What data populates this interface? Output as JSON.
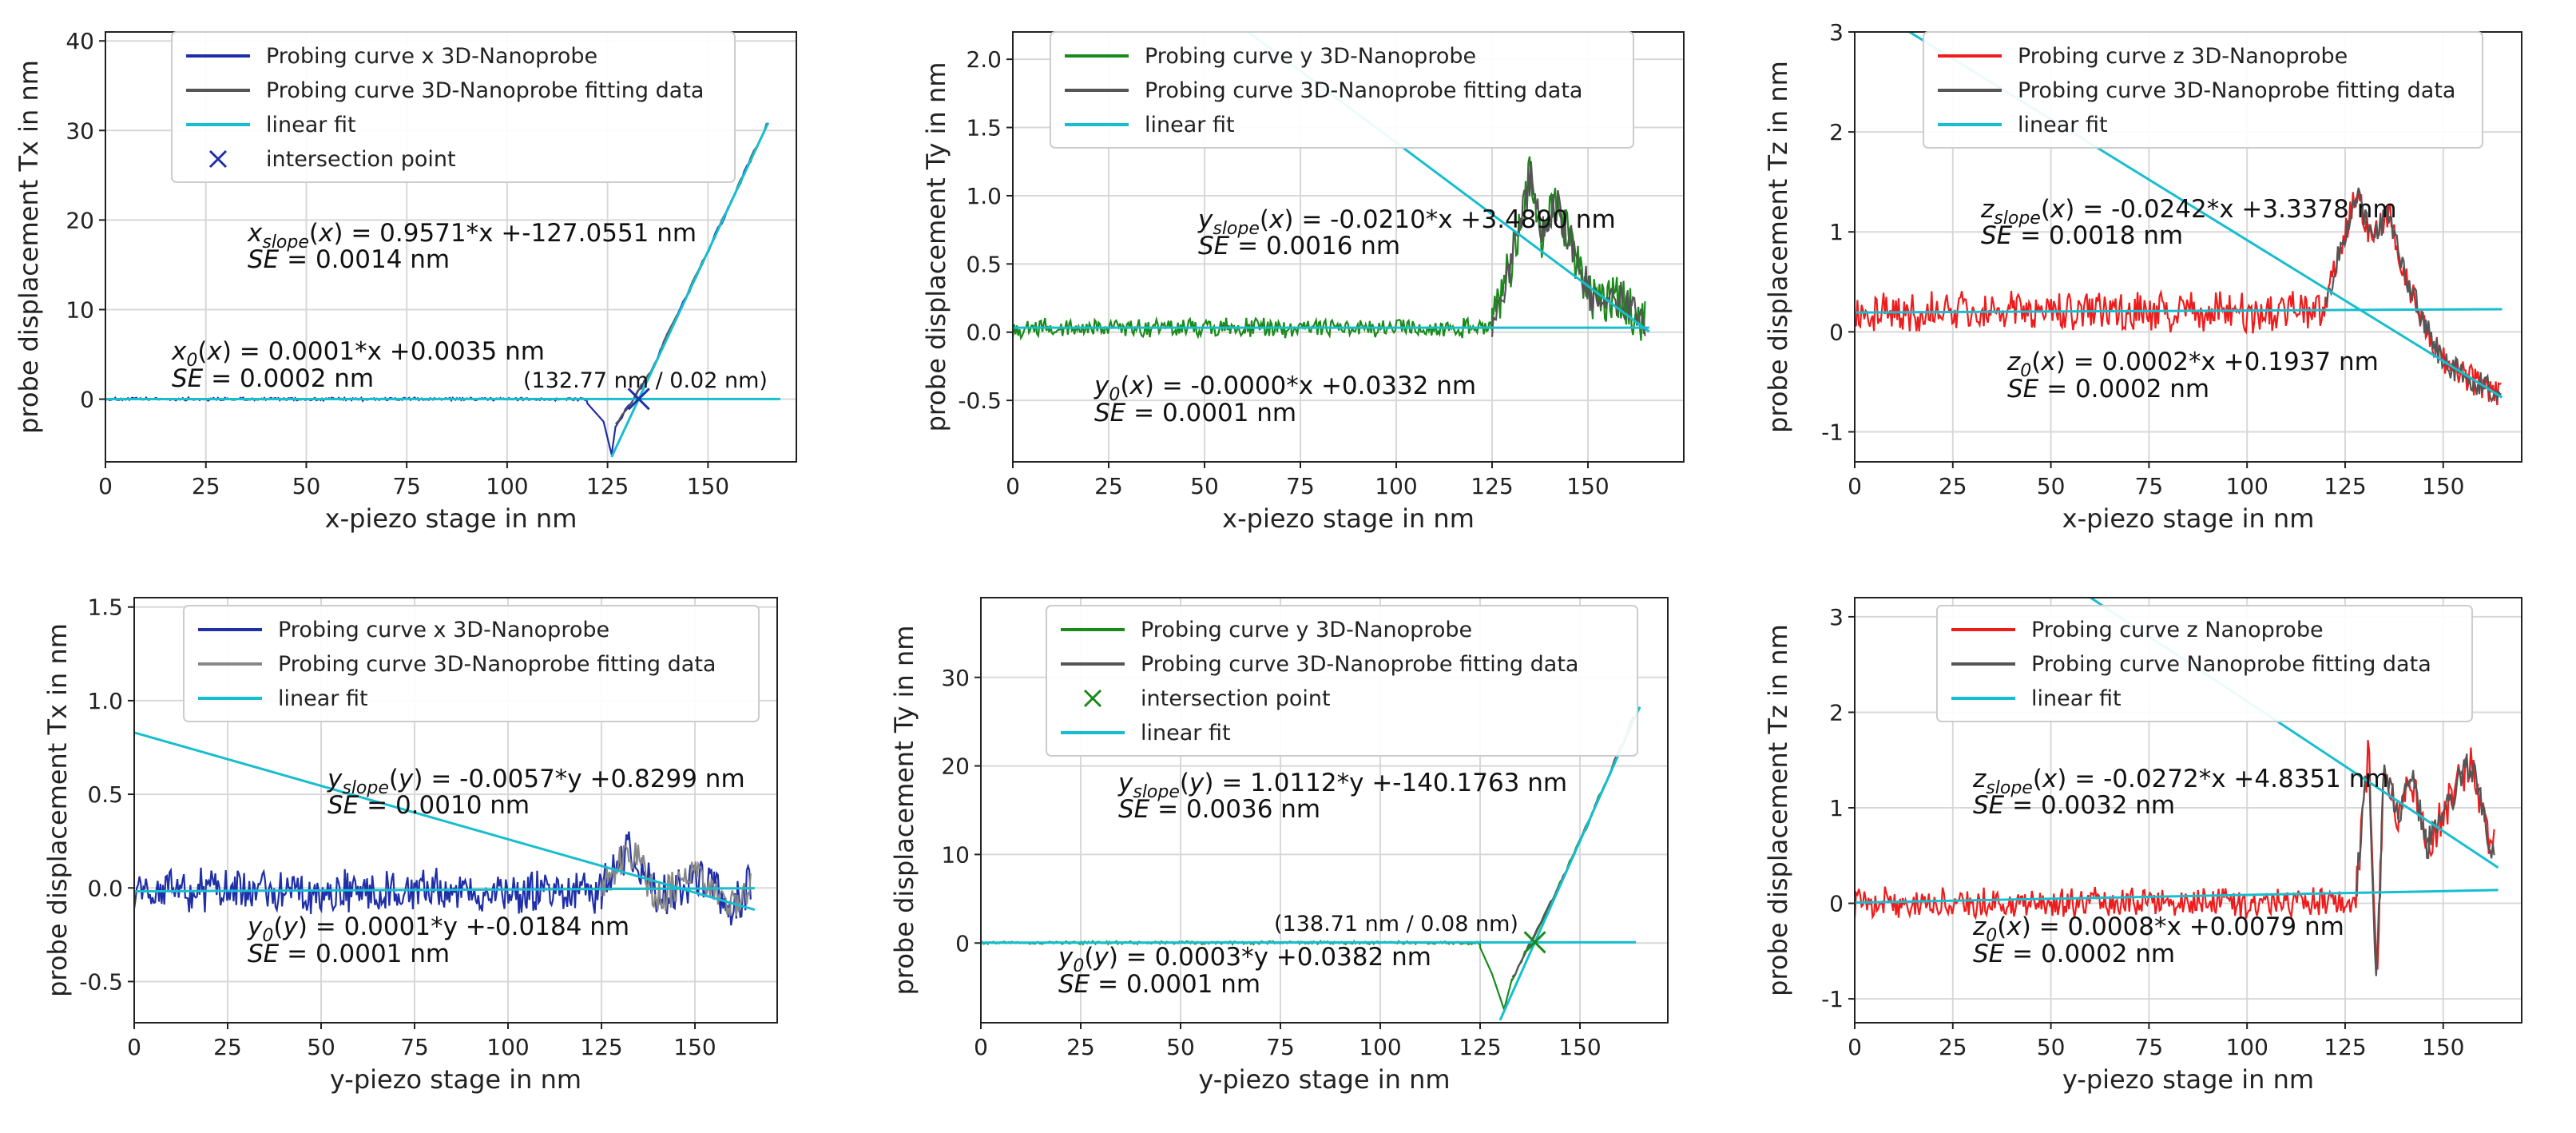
{
  "charts": [
    {
      "id": "p1",
      "type": "line",
      "xlabel": "x-piezo stage in nm",
      "ylabel": "probe displacement Tx in nm",
      "xlim": [
        0,
        172
      ],
      "ylim": [
        -7,
        41
      ],
      "xticks": [
        0,
        25,
        50,
        75,
        100,
        125,
        150
      ],
      "yticks": [
        0,
        10,
        20,
        30,
        40
      ],
      "data_color": "#1f2fa8",
      "noise_amp": 0.15,
      "baseline_end": 120,
      "dip": [
        [
          120,
          -0.5
        ],
        [
          124,
          -2.5
        ],
        [
          126,
          -6.2
        ],
        [
          127,
          -3.0
        ]
      ],
      "rise": [
        [
          127,
          -3.0
        ],
        [
          135,
          2.5
        ],
        [
          150,
          16.5
        ],
        [
          165,
          31
        ]
      ],
      "fit_start": 127,
      "slope_fit": {
        "m": 0.9571,
        "b": -127.0551,
        "from": 126,
        "to": 165
      },
      "base_fit": {
        "m": 0.0001,
        "b": 0.0035,
        "from": 0,
        "to": 168
      },
      "marker": {
        "x": 132.77,
        "y": 0.02,
        "color": "#1f2fa8"
      },
      "point_label": "(132.77 nm / 0.02 nm)",
      "legend": [
        {
          "label": "Probing curve x 3D-Nanoprobe",
          "kind": "line",
          "color": "#1f2fa8"
        },
        {
          "label": "Probing curve 3D-Nanoprobe fitting data",
          "kind": "line",
          "color": "#555555"
        },
        {
          "label": "linear fit",
          "kind": "line",
          "color": "#17becf"
        },
        {
          "label": "intersection point",
          "kind": "x",
          "color": "#1f2fa8"
        }
      ],
      "eq_slope": {
        "var": "x",
        "sub": "slope",
        "arg": "x",
        "rest": " = 0.9571*x +-127.0551 nm"
      },
      "se_slope": " = 0.0014 nm",
      "eq_base": {
        "var": "x",
        "sub": "0",
        "arg": "x",
        "rest": " = 0.0001*x +0.0035 nm"
      },
      "se_base": " = 0.0002 nm"
    },
    {
      "id": "p2",
      "type": "line",
      "xlabel": "x-piezo stage in nm",
      "ylabel": "probe displacement Ty in nm",
      "xlim": [
        0,
        175
      ],
      "ylim": [
        -0.95,
        2.2
      ],
      "xticks": [
        0,
        25,
        50,
        75,
        100,
        125,
        150
      ],
      "yticks": [
        -0.5,
        0.0,
        0.5,
        1.0,
        1.5,
        2.0
      ],
      "data_color": "#1a8a1a",
      "noise_amp": 0.06,
      "baseline_end": 125,
      "noisy_region": {
        "from": 125,
        "to": 165,
        "amp": 0.28
      },
      "fit_segment": [
        [
          125,
          0.1
        ],
        [
          130,
          0.5
        ],
        [
          135,
          1.15
        ],
        [
          138,
          0.7
        ],
        [
          142,
          0.95
        ],
        [
          148,
          0.45
        ],
        [
          152,
          0.2
        ],
        [
          158,
          0.25
        ],
        [
          163,
          0.1
        ]
      ],
      "slope_fit": {
        "m": -0.021,
        "b": 3.489,
        "from": 60,
        "to": 166
      },
      "base_fit": {
        "m": 0.0,
        "b": 0.0332,
        "from": 0,
        "to": 166
      },
      "legend": [
        {
          "label": "Probing curve y 3D-Nanoprobe",
          "kind": "line",
          "color": "#1a8a1a"
        },
        {
          "label": "Probing curve 3D-Nanoprobe  fitting data",
          "kind": "line",
          "color": "#555555"
        },
        {
          "label": "linear fit",
          "kind": "line",
          "color": "#17becf"
        }
      ],
      "eq_slope": {
        "var": "y",
        "sub": "slope",
        "arg": "x",
        "rest": " = -0.0210*x +3.4890 nm"
      },
      "se_slope": " = 0.0016 nm",
      "eq_base": {
        "var": "y",
        "sub": "0",
        "arg": "x",
        "rest": " = -0.0000*x +0.0332 nm"
      },
      "se_base": " = 0.0001 nm"
    },
    {
      "id": "p3",
      "type": "line",
      "xlabel": "x-piezo stage in nm",
      "ylabel": "probe displacement Tz in nm",
      "xlim": [
        0,
        170
      ],
      "ylim": [
        -1.3,
        3.0
      ],
      "xticks": [
        0,
        25,
        50,
        75,
        100,
        125,
        150
      ],
      "yticks": [
        -1,
        0,
        1,
        2,
        3
      ],
      "data_color": "#ee1c1c",
      "noise_amp": 0.18,
      "baseline_end": 120,
      "noisy_region": {
        "from": 120,
        "to": 165,
        "amp": 0.25
      },
      "fit_segment": [
        [
          120,
          0.3
        ],
        [
          125,
          1.0
        ],
        [
          128,
          1.4
        ],
        [
          132,
          0.9
        ],
        [
          136,
          1.2
        ],
        [
          140,
          0.6
        ],
        [
          145,
          0.1
        ],
        [
          150,
          -0.3
        ],
        [
          158,
          -0.5
        ],
        [
          164,
          -0.6
        ]
      ],
      "slope_fit": {
        "m": -0.0242,
        "b": 3.3378,
        "from": 10,
        "to": 165
      },
      "base_fit": {
        "m": 0.0002,
        "b": 0.1937,
        "from": 0,
        "to": 165
      },
      "legend": [
        {
          "label": "Probing curve z 3D-Nanoprobe",
          "kind": "line",
          "color": "#ee1c1c"
        },
        {
          "label": "Probing curve 3D-Nanoprobe fitting data",
          "kind": "line",
          "color": "#555555"
        },
        {
          "label": "linear fit",
          "kind": "line",
          "color": "#17becf"
        }
      ],
      "eq_slope": {
        "var": "z",
        "sub": "slope",
        "arg": "x",
        "rest": " = -0.0242*x +3.3378 nm"
      },
      "se_slope": " = 0.0018 nm",
      "eq_base": {
        "var": "z",
        "sub": "0",
        "arg": "x",
        "rest": " = 0.0002*x +0.1937 nm"
      },
      "se_base": " = 0.0002 nm"
    },
    {
      "id": "p4",
      "type": "line",
      "xlabel": "y-piezo stage in nm",
      "ylabel": "probe displacement Tx in nm",
      "xlim": [
        0,
        172
      ],
      "ylim": [
        -0.72,
        1.55
      ],
      "xticks": [
        0,
        25,
        50,
        75,
        100,
        125,
        150
      ],
      "yticks": [
        -0.5,
        0.0,
        0.5,
        1.0,
        1.5
      ],
      "data_color": "#1f2fa8",
      "noise_amp": 0.1,
      "baseline_end": 125,
      "noisy_region": {
        "from": 125,
        "to": 165,
        "amp": 0.2
      },
      "fit_segment": [
        [
          125,
          0.0
        ],
        [
          133,
          0.2
        ],
        [
          140,
          -0.05
        ],
        [
          150,
          0.05
        ],
        [
          160,
          -0.1
        ],
        [
          164,
          0.0
        ]
      ],
      "slope_fit": {
        "m": -0.0057,
        "b": 0.8299,
        "from": 0,
        "to": 166
      },
      "base_fit": {
        "m": 0.0001,
        "b": -0.0184,
        "from": 0,
        "to": 166
      },
      "legend": [
        {
          "label": "Probing curve x 3D-Nanoprobe",
          "kind": "line",
          "color": "#1f2fa8"
        },
        {
          "label": "Probing curve 3D-Nanoprobe fitting data",
          "kind": "line",
          "color": "#888888"
        },
        {
          "label": "linear fit",
          "kind": "line",
          "color": "#17becf"
        }
      ],
      "eq_slope": {
        "var": "y",
        "sub": "slope",
        "arg": "y",
        "rest": " = -0.0057*y +0.8299 nm"
      },
      "se_slope": " = 0.0010 nm",
      "eq_base": {
        "var": "y",
        "sub": "0",
        "arg": "y",
        "rest": " = 0.0001*y +-0.0184 nm"
      },
      "se_base": " = 0.0001 nm"
    },
    {
      "id": "p5",
      "type": "line",
      "xlabel": "y-piezo stage in nm",
      "ylabel": "probe displacement Ty in nm",
      "xlim": [
        0,
        172
      ],
      "ylim": [
        -9,
        39
      ],
      "xticks": [
        0,
        25,
        50,
        75,
        100,
        125,
        150
      ],
      "yticks": [
        0,
        10,
        20,
        30
      ],
      "data_color": "#1a8a1a",
      "noise_amp": 0.15,
      "baseline_end": 125,
      "dip": [
        [
          125,
          -0.5
        ],
        [
          128,
          -3.5
        ],
        [
          131,
          -7.5
        ],
        [
          133,
          -4.0
        ]
      ],
      "rise": [
        [
          133,
          -4.0
        ],
        [
          140,
          2.0
        ],
        [
          150,
          11.5
        ],
        [
          164,
          26
        ]
      ],
      "fit_start": 133,
      "slope_fit": {
        "m": 1.0112,
        "b": -140.1763,
        "from": 130,
        "to": 165
      },
      "base_fit": {
        "m": 0.0003,
        "b": 0.0382,
        "from": 0,
        "to": 164
      },
      "marker": {
        "x": 138.71,
        "y": 0.08,
        "color": "#1a8a1a"
      },
      "point_label": "(138.71 nm / 0.08 nm)",
      "legend": [
        {
          "label": "Probing curve y 3D-Nanoprobe",
          "kind": "line",
          "color": "#1a8a1a"
        },
        {
          "label": "Probing curve 3D-Nanoprobe fitting data",
          "kind": "line",
          "color": "#555555"
        },
        {
          "label": "intersection point",
          "kind": "x",
          "color": "#1a8a1a"
        },
        {
          "label": "linear fit",
          "kind": "line",
          "color": "#17becf"
        }
      ],
      "eq_slope": {
        "var": "y",
        "sub": "slope",
        "arg": "y",
        "rest": " = 1.0112*y +-140.1763 nm"
      },
      "se_slope": " = 0.0036 nm",
      "eq_base": {
        "var": "y",
        "sub": "0",
        "arg": "y",
        "rest": " = 0.0003*y +0.0382 nm"
      },
      "se_base": " = 0.0001 nm"
    },
    {
      "id": "p6",
      "type": "line",
      "xlabel": "y-piezo stage in nm",
      "ylabel": "probe displacement Tz in nm",
      "xlim": [
        0,
        170
      ],
      "ylim": [
        -1.25,
        3.2
      ],
      "xticks": [
        0,
        25,
        50,
        75,
        100,
        125,
        150
      ],
      "yticks": [
        -1,
        0,
        1,
        2,
        3
      ],
      "data_color": "#ee1c1c",
      "noise_amp": 0.14,
      "baseline_end": 128,
      "noisy_region": {
        "from": 128,
        "to": 163,
        "amp": 0.35
      },
      "fit_segment": [
        [
          128,
          0.2
        ],
        [
          131,
          1.6
        ],
        [
          133,
          -0.9
        ],
        [
          135,
          1.5
        ],
        [
          138,
          0.9
        ],
        [
          142,
          1.3
        ],
        [
          146,
          0.6
        ],
        [
          152,
          1.1
        ],
        [
          157,
          1.5
        ],
        [
          162,
          0.6
        ]
      ],
      "slope_fit": {
        "m": -0.0272,
        "b": 4.8351,
        "from": 60,
        "to": 164
      },
      "base_fit": {
        "m": 0.0008,
        "b": 0.0079,
        "from": 0,
        "to": 164
      },
      "legend": [
        {
          "label": "Probing curve z Nanoprobe",
          "kind": "line",
          "color": "#ee1c1c"
        },
        {
          "label": "Probing curve Nanoprobe fitting data",
          "kind": "line",
          "color": "#555555"
        },
        {
          "label": "linear fit",
          "kind": "line",
          "color": "#17becf"
        }
      ],
      "eq_slope": {
        "var": "z",
        "sub": "slope",
        "arg": "x",
        "rest": " = -0.0272*x +4.8351 nm"
      },
      "se_slope": " = 0.0032 nm",
      "eq_base": {
        "var": "z",
        "sub": "0",
        "arg": "x",
        "rest": " = 0.0008*x +0.0079 nm"
      },
      "se_base": " = 0.0002 nm"
    }
  ]
}
